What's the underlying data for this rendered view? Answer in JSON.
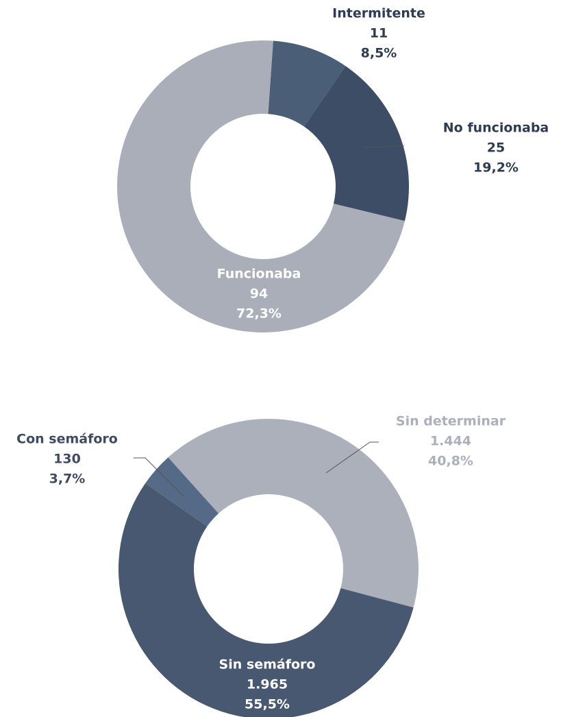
{
  "chart_data": [
    {
      "type": "donut",
      "categories": [
        "Intermitente",
        "No funcionaba",
        "Funcionaba"
      ],
      "values": [
        11,
        25,
        94
      ],
      "percentages": [
        8.5,
        19.2,
        72.3
      ],
      "percentage_labels": [
        "8,5%",
        "19,2%",
        "72,3%"
      ],
      "colors": [
        "#4a5e78",
        "#3d4d66",
        "#a9aeb8"
      ]
    },
    {
      "type": "donut",
      "categories": [
        "Sin determinar",
        "Sin semáforo",
        "Con semáforo"
      ],
      "values": [
        1444,
        1965,
        130
      ],
      "value_labels": [
        "1.444",
        "1.965",
        "130"
      ],
      "percentages": [
        40.8,
        55.5,
        3.7
      ],
      "percentage_labels": [
        "40,8%",
        "55,5%",
        "3,7%"
      ],
      "colors": [
        "#abb0bb",
        "#475870",
        "#556a87"
      ]
    }
  ]
}
